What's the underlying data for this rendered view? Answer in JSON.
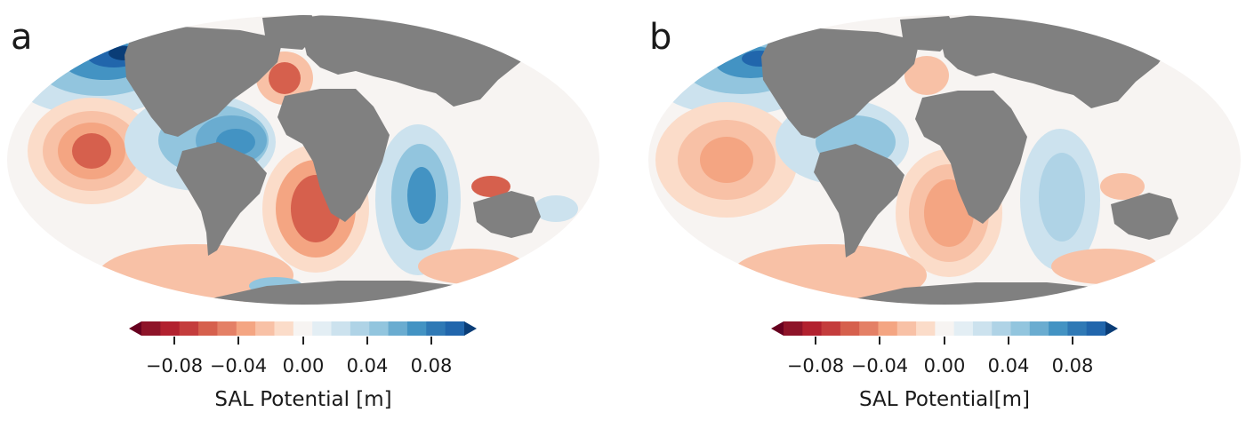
{
  "colors": {
    "land": "#808080",
    "levels": [
      "#67001f",
      "#8e1429",
      "#b2212f",
      "#c43c3c",
      "#d6604d",
      "#e48066",
      "#f4a582",
      "#f8c1a6",
      "#fbdcc9",
      "#f7f4f2",
      "#e3eef4",
      "#cce2ee",
      "#afd3e6",
      "#92c5de",
      "#6aacd0",
      "#4393c3",
      "#2f79b5",
      "#2166ac",
      "#0a3d77"
    ]
  },
  "panels": [
    {
      "id": "a",
      "label": "a",
      "colorbar": {
        "title": "SAL Potential [m]",
        "ticks": [
          "−0.08",
          "−0.04",
          "0.00",
          "0.04",
          "0.08"
        ]
      }
    },
    {
      "id": "b",
      "label": "b",
      "colorbar": {
        "title": "SAL Potential[m]",
        "ticks": [
          "−0.08",
          "−0.04",
          "0.00",
          "0.04",
          "0.08"
        ]
      }
    }
  ]
}
